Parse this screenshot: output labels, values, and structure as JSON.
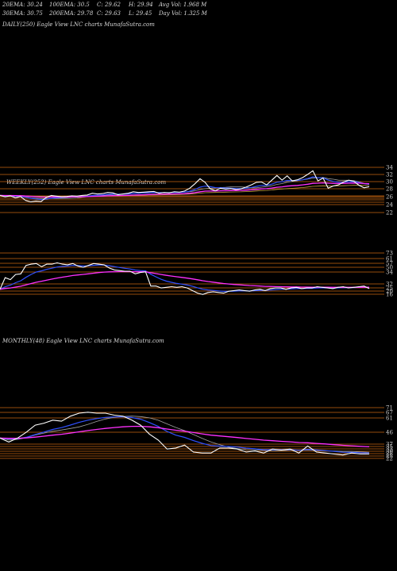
{
  "header": {
    "row1": [
      "20EMA: 30.24",
      "100EMA: 30.5",
      "C: 29.62",
      "H: 29.94",
      "Avg Vol: 1.968 M"
    ],
    "row2": [
      "30EMA: 30.75",
      "200EMA: 29.78",
      "C: 29.63",
      "L: 29.45",
      "Day Vol: 1.325 M"
    ]
  },
  "colors": {
    "price": "#ffffff",
    "ema_blue": "#3050ff",
    "ema_magenta": "#ff30ff",
    "level_orange": "#c86410",
    "ema_gray": "#a0a0a0",
    "ema_gold": "#c8a040"
  },
  "chart_data": [
    {
      "type": "line",
      "title": "DAILY(250) Eagle View LNC charts MunafaSutra.com",
      "series": []
    },
    {
      "type": "line",
      "title": "WEEKLY(252) Eagle View LNC charts MunafaSutra.com",
      "y_ticks": [
        "34",
        "32",
        "30",
        "28",
        "26",
        "24",
        "22"
      ],
      "series": [
        {
          "values": [
            26.6,
            26.2,
            26.5,
            25.9,
            26.3,
            25.2,
            24.8,
            25.0,
            24.9,
            26.0,
            26.6,
            26.4,
            26.2,
            26.3,
            26.5,
            26.4,
            26.6,
            26.7,
            27.2,
            27.0,
            27.1,
            27.4,
            27.3,
            26.8,
            27.0,
            27.2,
            27.6,
            27.4,
            27.5,
            27.6,
            27.7,
            27.2,
            27.4,
            27.3,
            27.6,
            27.5,
            27.8,
            28.6,
            29.8,
            31.2,
            30.2,
            28.4,
            27.9,
            28.6,
            28.3,
            28.5,
            28.2,
            28.4,
            28.9,
            29.5,
            30.2,
            30.3,
            29.5,
            30.8,
            32.1,
            30.8,
            32.0,
            30.6,
            30.9,
            31.5,
            32.4,
            33.4,
            30.6,
            31.4,
            28.6,
            29.2,
            29.5,
            30.3,
            30.8,
            30.5,
            29.4,
            28.7,
            29.0
          ]
        }
      ],
      "overlays": [
        "ema_blue",
        "ema_magenta",
        "ema_gray",
        "ema_gold"
      ]
    },
    {
      "type": "line",
      "title": "",
      "y_ticks": [
        "73",
        "61",
        "57",
        "50",
        "34",
        "32",
        "25",
        "20",
        "16"
      ],
      "series": [
        {
          "values": [
            20,
            38,
            35,
            43,
            44,
            57,
            59,
            60,
            55,
            59,
            59,
            61,
            59,
            58,
            60,
            56,
            54,
            57,
            60,
            59,
            58,
            53,
            50,
            49,
            48,
            48,
            44,
            46,
            47,
            25,
            25,
            22,
            23,
            24,
            23,
            24,
            22,
            18,
            14,
            12,
            15,
            16,
            15,
            14,
            17,
            18,
            19,
            18,
            17,
            19,
            20,
            18,
            21,
            22,
            22,
            20,
            22,
            23,
            21,
            22,
            22,
            24,
            23,
            22,
            21,
            23,
            24,
            22,
            23,
            24,
            25,
            21
          ]
        }
      ],
      "overlays": [
        "ema_blue",
        "ema_magenta"
      ]
    },
    {
      "type": "line",
      "title": "MONTHLY(48) Eagle View LNC charts MunafaSutra.com",
      "y_ticks": [
        "71",
        "67",
        "61",
        "46",
        "37",
        "35",
        "33",
        "30",
        "28",
        "25",
        "22"
      ],
      "series": [
        {
          "values": [
            42,
            38,
            42,
            48,
            55,
            57,
            60,
            59,
            64,
            67,
            68,
            67,
            67,
            65,
            64,
            60,
            55,
            46,
            40,
            31,
            32,
            35,
            28,
            27,
            27,
            32,
            32,
            31,
            28,
            29,
            27,
            31,
            30,
            31,
            27,
            34,
            28,
            27,
            26,
            25,
            27,
            26,
            26
          ]
        }
      ],
      "overlays": [
        "ema_blue",
        "ema_magenta",
        "ema_gray"
      ]
    }
  ]
}
